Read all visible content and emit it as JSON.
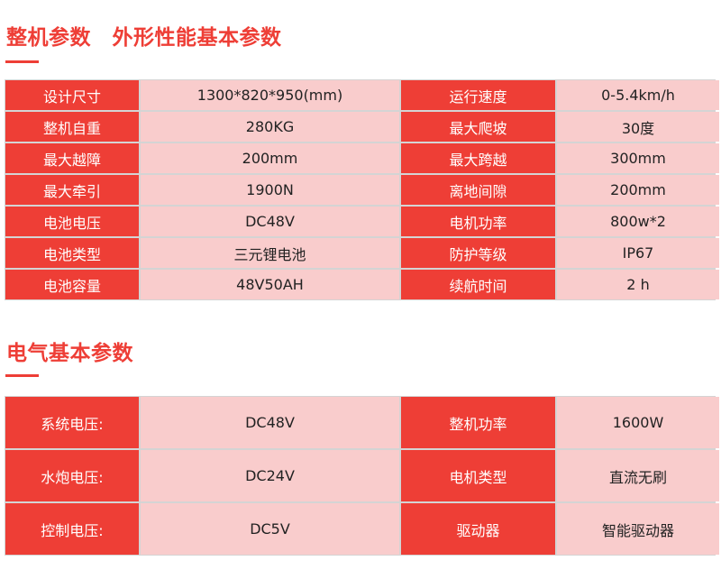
{
  "section1": {
    "title": "整机参数　外形性能基本参数",
    "rows": [
      [
        "设计尺寸",
        "1300*820*950(mm)",
        "运行速度",
        "0-5.4km/h"
      ],
      [
        "整机自重",
        "280KG",
        "最大爬坡",
        "30度"
      ],
      [
        "最大越障",
        "200mm",
        "最大跨越",
        "300mm"
      ],
      [
        "最大牵引",
        "1900N",
        "离地间隙",
        "200mm"
      ],
      [
        "电池电压",
        "DC48V",
        "电机功率",
        "800w*2"
      ],
      [
        "电池类型",
        "三元锂电池",
        "防护等级",
        "IP67"
      ],
      [
        "电池容量",
        "48V50AH",
        "续航时间",
        "2 h"
      ]
    ]
  },
  "section2": {
    "title": "电气基本参数",
    "rows": [
      [
        "系统电压:",
        "DC48V",
        "整机功率",
        "1600W"
      ],
      [
        "水炮电压:",
        "DC24V",
        "电机类型",
        "直流无刷"
      ],
      [
        "控制电压:",
        "DC5V",
        "驱动器",
        "智能驱动器"
      ]
    ]
  },
  "colors": {
    "accent": "#ee3e36",
    "value_bg": "#f9cccc"
  }
}
